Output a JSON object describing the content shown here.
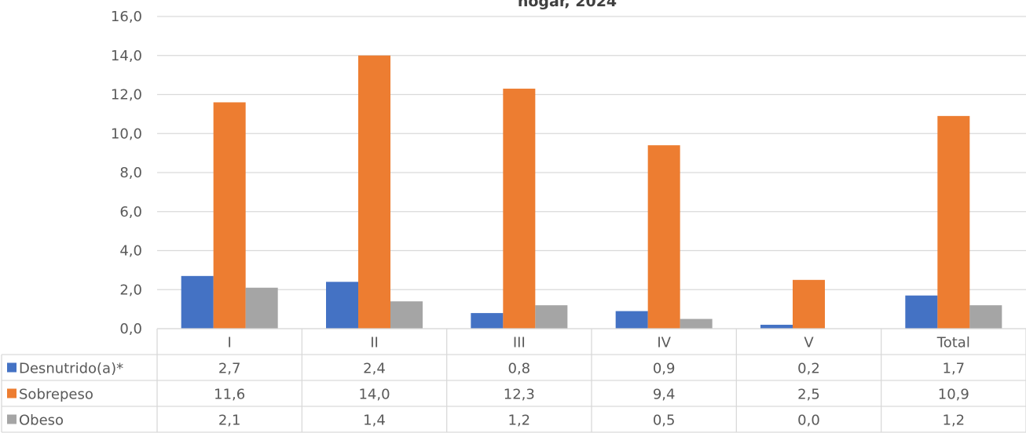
{
  "chart_data": {
    "type": "bar",
    "title": "hogar, 2024",
    "categories": [
      "I",
      "II",
      "III",
      "IV",
      "V",
      "Total"
    ],
    "ylim": [
      0,
      16
    ],
    "yticks": [
      "0,0",
      "2,0",
      "4,0",
      "6,0",
      "8,0",
      "10,0",
      "12,0",
      "14,0",
      "16,0"
    ],
    "grid": true,
    "legend": "data-table",
    "series": [
      {
        "name": "Desnutrido(a)*",
        "color": "#4472C4",
        "values": [
          2.7,
          2.4,
          0.8,
          0.9,
          0.2,
          1.7
        ],
        "labels": [
          "2,7",
          "2,4",
          "0,8",
          "0,9",
          "0,2",
          "1,7"
        ]
      },
      {
        "name": "Sobrepeso",
        "color": "#ED7D31",
        "values": [
          11.6,
          14.0,
          12.3,
          9.4,
          2.5,
          10.9
        ],
        "labels": [
          "11,6",
          "14,0",
          "12,3",
          "9,4",
          "2,5",
          "10,9"
        ]
      },
      {
        "name": "Obeso",
        "color": "#A5A5A5",
        "values": [
          2.1,
          1.4,
          1.2,
          0.5,
          0.0,
          1.2
        ],
        "labels": [
          "2,1",
          "1,4",
          "1,2",
          "0,5",
          "0,0",
          "1,2"
        ]
      }
    ]
  }
}
